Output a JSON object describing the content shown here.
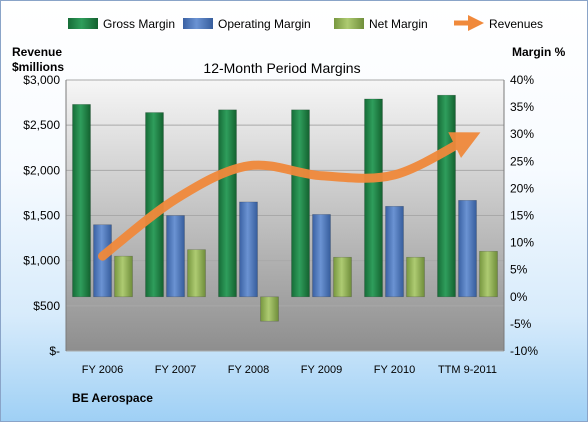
{
  "chart_data": {
    "type": "bar",
    "title": "12-Month Period Margins",
    "left_axis_title_line1": "Revenue",
    "left_axis_title_line2": "$millions",
    "right_axis_title": "Margin %",
    "company_label": "BE Aerospace",
    "categories": [
      "FY 2006",
      "FY 2007",
      "FY 2008",
      "FY 2009",
      "FY 2010",
      "TTM 9-2011"
    ],
    "left_axis": {
      "min": 0,
      "max": 3000,
      "step": 500,
      "tick_labels": [
        "$-",
        "$500",
        "$1,000",
        "$1,500",
        "$2,000",
        "$2,500",
        "$3,000"
      ]
    },
    "right_axis": {
      "min": -10,
      "max": 40,
      "step": 5,
      "tick_labels": [
        "-10%",
        "-5%",
        "0%",
        "5%",
        "10%",
        "15%",
        "20%",
        "25%",
        "30%",
        "35%",
        "40%"
      ]
    },
    "series": [
      {
        "name": "Gross Margin",
        "kind": "bar",
        "axis": "right",
        "values": [
          35.5,
          34.0,
          34.5,
          34.5,
          36.5,
          37.2
        ]
      },
      {
        "name": "Operating Margin",
        "kind": "bar",
        "axis": "right",
        "values": [
          13.3,
          15.0,
          17.5,
          15.2,
          16.7,
          17.8
        ]
      },
      {
        "name": "Net Margin",
        "kind": "bar",
        "axis": "right",
        "values": [
          7.5,
          8.7,
          -4.5,
          7.3,
          7.3,
          8.4
        ]
      },
      {
        "name": "Revenues",
        "kind": "line",
        "axis": "left",
        "values": [
          1050,
          1680,
          2050,
          1940,
          1950,
          2350
        ]
      }
    ],
    "colors": {
      "gross": "#21894b",
      "operating": "#4f7ac0",
      "net": "#93b55a",
      "revenues": "#f0893b",
      "plot_bg_top": "#f4f4f4",
      "plot_bg_bottom": "#8c8c8c"
    },
    "legend_position": "top"
  }
}
